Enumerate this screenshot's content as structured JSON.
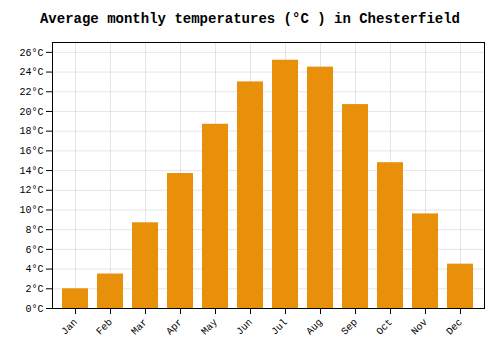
{
  "chart_data": {
    "type": "bar",
    "title": "Average monthly temperatures (°C ) in Chesterfield",
    "categories": [
      "Jan",
      "Feb",
      "Mar",
      "Apr",
      "May",
      "Jun",
      "Jul",
      "Aug",
      "Sep",
      "Oct",
      "Nov",
      "Dec"
    ],
    "values": [
      2.0,
      3.5,
      8.7,
      13.7,
      18.7,
      23.0,
      25.2,
      24.5,
      20.7,
      14.8,
      9.6,
      4.5
    ],
    "color": "#E8900A",
    "ylim": [
      0,
      27
    ],
    "yticks": [
      {
        "value": 0,
        "label": "0°C"
      },
      {
        "value": 2,
        "label": "2°C"
      },
      {
        "value": 4,
        "label": "4°C"
      },
      {
        "value": 6,
        "label": "6°C"
      },
      {
        "value": 8,
        "label": "8°C"
      },
      {
        "value": 10,
        "label": "10°C"
      },
      {
        "value": 12,
        "label": "12°C"
      },
      {
        "value": 14,
        "label": "14°C"
      },
      {
        "value": 16,
        "label": "16°C"
      },
      {
        "value": 18,
        "label": "18°C"
      },
      {
        "value": 20,
        "label": "20°C"
      },
      {
        "value": 22,
        "label": "22°C"
      },
      {
        "value": 24,
        "label": "24°C"
      },
      {
        "value": 26,
        "label": "26°C"
      }
    ],
    "grid": true
  }
}
